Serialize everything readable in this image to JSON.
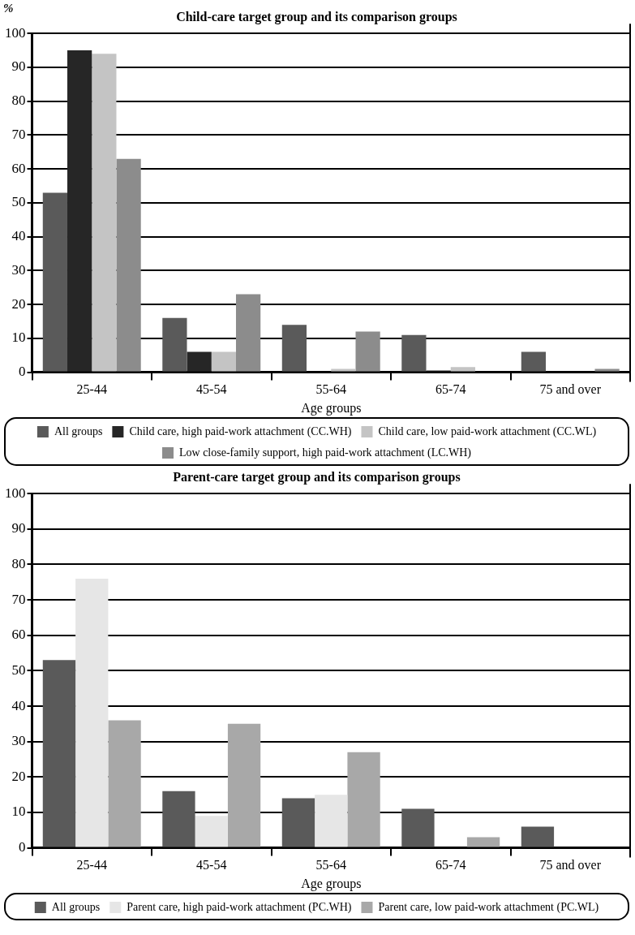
{
  "chart_data": [
    {
      "type": "bar",
      "title": "Child-care target group and its comparison groups",
      "xlabel": "Age groups",
      "ylabel": "%",
      "categories": [
        "25-44",
        "45-54",
        "55-64",
        "65-74",
        "75 and over"
      ],
      "series": [
        {
          "name": "All groups",
          "color": "#5a5a5a",
          "values": [
            53,
            16,
            14,
            11,
            6
          ]
        },
        {
          "name": "Child care, high paid-work attachment (CC.WH)",
          "color": "#262626",
          "values": [
            95,
            6,
            0,
            0.5,
            0
          ]
        },
        {
          "name": "Child care, low paid-work attachment (CC.WL)",
          "color": "#c4c4c4",
          "values": [
            94,
            6,
            1,
            1.5,
            0
          ]
        },
        {
          "name": "Low close-family support, high paid-work attachment (LC.WH)",
          "color": "#8c8c8c",
          "values": [
            63,
            23,
            12,
            0,
            1
          ]
        }
      ],
      "ylim": [
        0,
        100
      ],
      "yticks": [
        0,
        10,
        20,
        30,
        40,
        50,
        60,
        70,
        80,
        90,
        100
      ],
      "grid": "y",
      "legend": "bottom"
    },
    {
      "type": "bar",
      "title": "Parent-care target group and its comparison groups",
      "xlabel": "Age groups",
      "categories": [
        "25-44",
        "45-54",
        "55-64",
        "65-74",
        "75 and over"
      ],
      "series": [
        {
          "name": "All groups",
          "color": "#5a5a5a",
          "values": [
            53,
            16,
            14,
            11,
            6
          ]
        },
        {
          "name": "Parent care, high paid-work attachment (PC.WH)",
          "color": "#e6e6e6",
          "values": [
            76,
            9,
            15,
            0,
            0
          ]
        },
        {
          "name": "Parent care, low paid-work attachment (PC.WL)",
          "color": "#a8a8a8",
          "values": [
            36,
            35,
            27,
            3,
            0
          ]
        }
      ],
      "ylim": [
        0,
        100
      ],
      "yticks": [
        0,
        10,
        20,
        30,
        40,
        50,
        60,
        70,
        80,
        90,
        100
      ],
      "grid": "y",
      "legend": "bottom"
    }
  ]
}
